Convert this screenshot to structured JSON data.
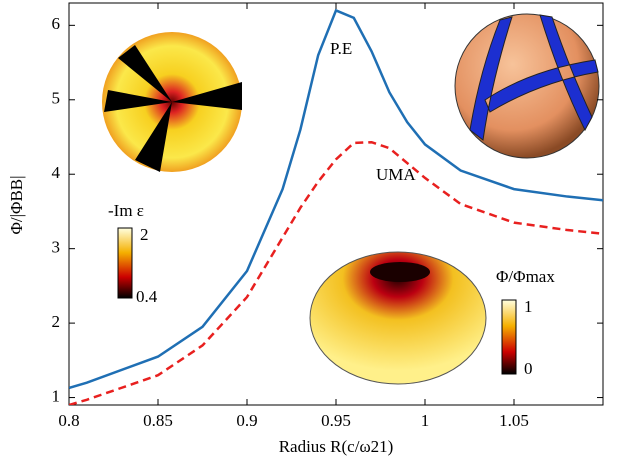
{
  "chart_data": {
    "type": "line",
    "xlabel": "Radius R(c/ω21)",
    "ylabel": "Φ/|ΦBB|",
    "x": [
      0.8,
      0.81,
      0.85,
      0.875,
      0.9,
      0.92,
      0.93,
      0.94,
      0.95,
      0.96,
      0.97,
      0.98,
      0.99,
      1.0,
      1.02,
      1.05,
      1.08,
      1.1
    ],
    "series": [
      {
        "name": "P.E",
        "color": "#1f6fb4",
        "dash": false,
        "values": [
          1.13,
          1.2,
          1.55,
          1.95,
          2.7,
          3.8,
          4.6,
          5.6,
          6.2,
          6.1,
          5.65,
          5.1,
          4.7,
          4.4,
          4.05,
          3.8,
          3.7,
          3.65
        ]
      },
      {
        "name": "UMA",
        "color": "#e8201f",
        "dash": true,
        "values": [
          0.9,
          0.97,
          1.3,
          1.7,
          2.35,
          3.15,
          3.55,
          3.9,
          4.2,
          4.42,
          4.43,
          4.35,
          4.15,
          3.95,
          3.6,
          3.35,
          3.25,
          3.2
        ]
      }
    ],
    "xlim": [
      0.8,
      1.1
    ],
    "xticks": [
      0.8,
      0.85,
      0.9,
      0.95,
      1,
      1.05
    ],
    "ylim": [
      0.9,
      6.3
    ],
    "yticks": [
      1,
      2,
      3,
      4,
      5,
      6
    ],
    "colorbars": [
      {
        "title": "-Im ε",
        "max": 2,
        "min": 0.4
      },
      {
        "title": "Φ/Φmax",
        "max": 1,
        "min": 0
      }
    ]
  }
}
